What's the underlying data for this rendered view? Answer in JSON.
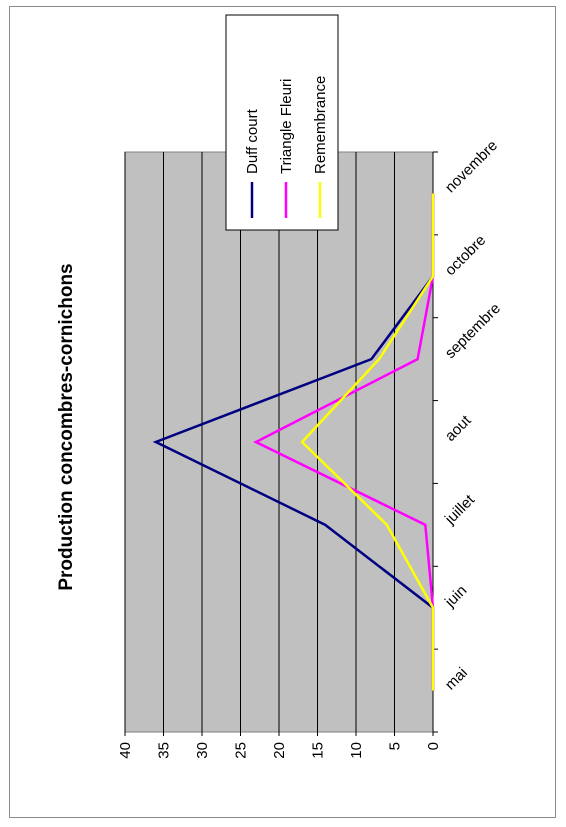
{
  "chart_data": {
    "type": "line",
    "title": "Production concombres-cornichons",
    "categories": [
      "mai",
      "juin",
      "juillet",
      "aout",
      "septembre",
      "octobre",
      "novembre"
    ],
    "ylim": [
      0,
      40
    ],
    "yticks": [
      0,
      5,
      10,
      15,
      20,
      25,
      30,
      35,
      40
    ],
    "grid": true,
    "legend_position": "top-right",
    "series": [
      {
        "name": "Duff court",
        "color": "#000080",
        "values": [
          0,
          0,
          14,
          36,
          8,
          0,
          0
        ]
      },
      {
        "name": "Triangle Fleuri",
        "color": "#ff00ff",
        "values": [
          0,
          0,
          1,
          23,
          2,
          0,
          0
        ]
      },
      {
        "name": "Remembrance",
        "color": "#ffff00",
        "values": [
          0,
          0,
          6,
          17,
          7,
          0,
          0
        ]
      }
    ],
    "plot_background": "#c0c0c0"
  }
}
